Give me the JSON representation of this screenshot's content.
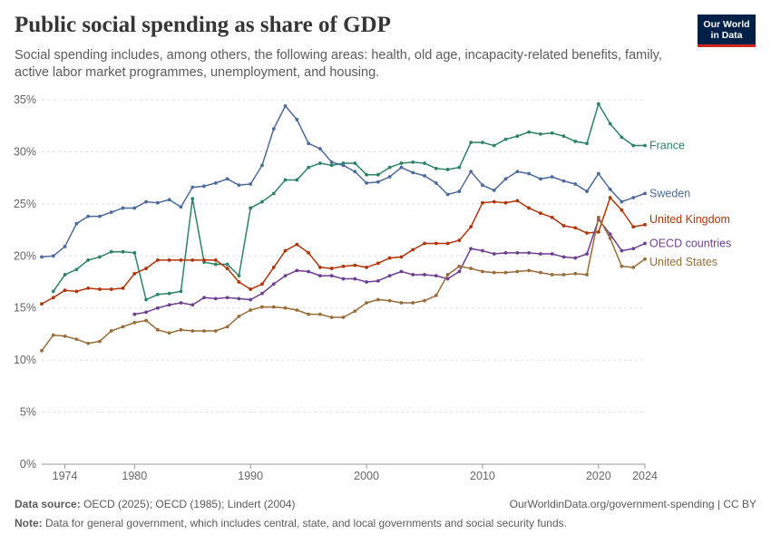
{
  "header": {
    "title": "Public social spending as share of GDP",
    "subtitle": "Social spending includes, among others, the following areas: health, old age, incapacity-related benefits, family, active labor market programmes, unemployment, and housing.",
    "logo_line1": "Our World",
    "logo_line2": "in Data"
  },
  "footer": {
    "source_label": "Data source:",
    "source_text": "OECD (2025); OECD (1985); Lindert (2004)",
    "link_text": "OurWorldinData.org/government-spending | CC BY",
    "note_label": "Note:",
    "note_text": "Data for general government, which includes central, state, and local governments and social security funds."
  },
  "colors": {
    "France": "#2c8465",
    "Sweden": "#4c6a9c",
    "United Kingdom": "#b13507",
    "OECD countries": "#6d3e91",
    "United States": "#996d39",
    "grid": "#dddddd",
    "axis_text": "#666666"
  },
  "chart_data": {
    "type": "line",
    "ylim": [
      0,
      35
    ],
    "xlim": [
      1972,
      2024
    ],
    "y_ticks": [
      "0%",
      "5%",
      "10%",
      "15%",
      "20%",
      "25%",
      "30%",
      "35%"
    ],
    "x_ticks": [
      "1974",
      "1980",
      "1990",
      "2000",
      "2010",
      "2020",
      "2024"
    ],
    "grid": "horizontal dashed",
    "legend": "line-end labels",
    "series": [
      {
        "name": "France",
        "points": [
          [
            1973,
            16.6
          ],
          [
            1974,
            18.2
          ],
          [
            1975,
            18.7
          ],
          [
            1976,
            19.6
          ],
          [
            1977,
            19.9
          ],
          [
            1978,
            20.4
          ],
          [
            1979,
            20.4
          ],
          [
            1980,
            20.3
          ],
          [
            1981,
            15.8
          ],
          [
            1982,
            16.3
          ],
          [
            1983,
            16.4
          ],
          [
            1984,
            16.6
          ],
          [
            1985,
            25.5
          ],
          [
            1986,
            19.4
          ],
          [
            1987,
            19.2
          ],
          [
            1988,
            19.2
          ],
          [
            1989,
            18.1
          ],
          [
            1990,
            24.6
          ],
          [
            1991,
            25.2
          ],
          [
            1992,
            26.0
          ],
          [
            1993,
            27.3
          ],
          [
            1994,
            27.3
          ],
          [
            1995,
            28.5
          ],
          [
            1996,
            28.9
          ],
          [
            1997,
            28.7
          ],
          [
            1998,
            28.9
          ],
          [
            1999,
            28.9
          ],
          [
            2000,
            27.8
          ],
          [
            2001,
            27.8
          ],
          [
            2002,
            28.5
          ],
          [
            2003,
            28.9
          ],
          [
            2004,
            29.0
          ],
          [
            2005,
            28.9
          ],
          [
            2006,
            28.4
          ],
          [
            2007,
            28.3
          ],
          [
            2008,
            28.5
          ],
          [
            2009,
            30.9
          ],
          [
            2010,
            30.9
          ],
          [
            2011,
            30.6
          ],
          [
            2012,
            31.2
          ],
          [
            2013,
            31.5
          ],
          [
            2014,
            31.9
          ],
          [
            2015,
            31.7
          ],
          [
            2016,
            31.8
          ],
          [
            2017,
            31.5
          ],
          [
            2018,
            31.0
          ],
          [
            2019,
            30.8
          ],
          [
            2020,
            34.6
          ],
          [
            2021,
            32.7
          ],
          [
            2022,
            31.4
          ],
          [
            2023,
            30.6
          ],
          [
            2024,
            30.6
          ]
        ]
      },
      {
        "name": "Sweden",
        "points": [
          [
            1972,
            19.9
          ],
          [
            1973,
            20.0
          ],
          [
            1974,
            20.9
          ],
          [
            1975,
            23.1
          ],
          [
            1976,
            23.8
          ],
          [
            1977,
            23.8
          ],
          [
            1978,
            24.2
          ],
          [
            1979,
            24.6
          ],
          [
            1980,
            24.6
          ],
          [
            1981,
            25.2
          ],
          [
            1982,
            25.1
          ],
          [
            1983,
            25.4
          ],
          [
            1984,
            24.7
          ],
          [
            1985,
            26.6
          ],
          [
            1986,
            26.7
          ],
          [
            1987,
            27.0
          ],
          [
            1988,
            27.4
          ],
          [
            1989,
            26.8
          ],
          [
            1990,
            26.9
          ],
          [
            1991,
            28.7
          ],
          [
            1992,
            32.2
          ],
          [
            1993,
            34.4
          ],
          [
            1994,
            33.1
          ],
          [
            1995,
            30.8
          ],
          [
            1996,
            30.3
          ],
          [
            1997,
            29.0
          ],
          [
            1998,
            28.7
          ],
          [
            1999,
            28.1
          ],
          [
            2000,
            27.0
          ],
          [
            2001,
            27.1
          ],
          [
            2002,
            27.6
          ],
          [
            2003,
            28.5
          ],
          [
            2004,
            28.0
          ],
          [
            2005,
            27.7
          ],
          [
            2006,
            27.0
          ],
          [
            2007,
            25.9
          ],
          [
            2008,
            26.2
          ],
          [
            2009,
            28.1
          ],
          [
            2010,
            26.8
          ],
          [
            2011,
            26.3
          ],
          [
            2012,
            27.4
          ],
          [
            2013,
            28.1
          ],
          [
            2014,
            27.9
          ],
          [
            2015,
            27.4
          ],
          [
            2016,
            27.6
          ],
          [
            2017,
            27.2
          ],
          [
            2018,
            26.9
          ],
          [
            2019,
            26.2
          ],
          [
            2020,
            27.9
          ],
          [
            2021,
            26.4
          ],
          [
            2022,
            25.2
          ],
          [
            2023,
            25.6
          ],
          [
            2024,
            26.0
          ]
        ]
      },
      {
        "name": "United Kingdom",
        "points": [
          [
            1972,
            15.4
          ],
          [
            1973,
            16.0
          ],
          [
            1974,
            16.7
          ],
          [
            1975,
            16.6
          ],
          [
            1976,
            16.9
          ],
          [
            1977,
            16.8
          ],
          [
            1978,
            16.8
          ],
          [
            1979,
            16.9
          ],
          [
            1980,
            18.3
          ],
          [
            1981,
            18.8
          ],
          [
            1982,
            19.6
          ],
          [
            1983,
            19.6
          ],
          [
            1984,
            19.6
          ],
          [
            1985,
            19.6
          ],
          [
            1986,
            19.6
          ],
          [
            1987,
            19.6
          ],
          [
            1988,
            18.8
          ],
          [
            1989,
            17.5
          ],
          [
            1990,
            16.8
          ],
          [
            1991,
            17.3
          ],
          [
            1992,
            18.9
          ],
          [
            1993,
            20.5
          ],
          [
            1994,
            21.1
          ],
          [
            1995,
            20.3
          ],
          [
            1996,
            18.9
          ],
          [
            1997,
            18.8
          ],
          [
            1998,
            19.0
          ],
          [
            1999,
            19.1
          ],
          [
            2000,
            18.9
          ],
          [
            2001,
            19.3
          ],
          [
            2002,
            19.8
          ],
          [
            2003,
            19.9
          ],
          [
            2004,
            20.6
          ],
          [
            2005,
            21.2
          ],
          [
            2006,
            21.2
          ],
          [
            2007,
            21.2
          ],
          [
            2008,
            21.5
          ],
          [
            2009,
            22.8
          ],
          [
            2010,
            25.1
          ],
          [
            2011,
            25.2
          ],
          [
            2012,
            25.1
          ],
          [
            2013,
            25.3
          ],
          [
            2014,
            24.6
          ],
          [
            2015,
            24.1
          ],
          [
            2016,
            23.7
          ],
          [
            2017,
            22.9
          ],
          [
            2018,
            22.7
          ],
          [
            2019,
            22.2
          ],
          [
            2020,
            22.3
          ],
          [
            2021,
            25.6
          ],
          [
            2022,
            24.4
          ],
          [
            2023,
            22.8
          ],
          [
            2024,
            23.0
          ]
        ]
      },
      {
        "name": "OECD countries",
        "points": [
          [
            1980,
            14.4
          ],
          [
            1981,
            14.6
          ],
          [
            1982,
            15.0
          ],
          [
            1983,
            15.3
          ],
          [
            1984,
            15.5
          ],
          [
            1985,
            15.3
          ],
          [
            1986,
            16.0
          ],
          [
            1987,
            15.9
          ],
          [
            1988,
            16.0
          ],
          [
            1989,
            15.9
          ],
          [
            1990,
            15.8
          ],
          [
            1991,
            16.4
          ],
          [
            1992,
            17.3
          ],
          [
            1993,
            18.1
          ],
          [
            1994,
            18.6
          ],
          [
            1995,
            18.5
          ],
          [
            1996,
            18.1
          ],
          [
            1997,
            18.1
          ],
          [
            1998,
            17.8
          ],
          [
            1999,
            17.8
          ],
          [
            2000,
            17.5
          ],
          [
            2001,
            17.6
          ],
          [
            2002,
            18.1
          ],
          [
            2003,
            18.5
          ],
          [
            2004,
            18.2
          ],
          [
            2005,
            18.2
          ],
          [
            2006,
            18.1
          ],
          [
            2007,
            17.8
          ],
          [
            2008,
            18.5
          ],
          [
            2009,
            20.7
          ],
          [
            2010,
            20.5
          ],
          [
            2011,
            20.2
          ],
          [
            2012,
            20.3
          ],
          [
            2013,
            20.3
          ],
          [
            2014,
            20.3
          ],
          [
            2015,
            20.2
          ],
          [
            2016,
            20.2
          ],
          [
            2017,
            19.9
          ],
          [
            2018,
            19.8
          ],
          [
            2019,
            20.2
          ],
          [
            2020,
            23.5
          ],
          [
            2021,
            22.1
          ],
          [
            2022,
            20.5
          ],
          [
            2023,
            20.7
          ],
          [
            2024,
            21.2
          ]
        ]
      },
      {
        "name": "United States",
        "points": [
          [
            1972,
            10.9
          ],
          [
            1973,
            12.4
          ],
          [
            1974,
            12.3
          ],
          [
            1975,
            12.0
          ],
          [
            1976,
            11.6
          ],
          [
            1977,
            11.8
          ],
          [
            1978,
            12.8
          ],
          [
            1979,
            13.2
          ],
          [
            1980,
            13.6
          ],
          [
            1981,
            13.8
          ],
          [
            1982,
            12.9
          ],
          [
            1983,
            12.6
          ],
          [
            1984,
            12.9
          ],
          [
            1985,
            12.8
          ],
          [
            1986,
            12.8
          ],
          [
            1987,
            12.8
          ],
          [
            1988,
            13.2
          ],
          [
            1989,
            14.2
          ],
          [
            1990,
            14.8
          ],
          [
            1991,
            15.1
          ],
          [
            1992,
            15.1
          ],
          [
            1993,
            15.0
          ],
          [
            1994,
            14.8
          ],
          [
            1995,
            14.4
          ],
          [
            1996,
            14.4
          ],
          [
            1997,
            14.1
          ],
          [
            1998,
            14.1
          ],
          [
            1999,
            14.7
          ],
          [
            2000,
            15.5
          ],
          [
            2001,
            15.8
          ],
          [
            2002,
            15.7
          ],
          [
            2003,
            15.5
          ],
          [
            2004,
            15.5
          ],
          [
            2005,
            15.7
          ],
          [
            2006,
            16.2
          ],
          [
            2007,
            18.2
          ],
          [
            2008,
            19.0
          ],
          [
            2009,
            18.8
          ],
          [
            2010,
            18.5
          ],
          [
            2011,
            18.4
          ],
          [
            2012,
            18.4
          ],
          [
            2013,
            18.5
          ],
          [
            2014,
            18.6
          ],
          [
            2015,
            18.4
          ],
          [
            2016,
            18.2
          ],
          [
            2017,
            18.2
          ],
          [
            2018,
            18.3
          ],
          [
            2019,
            18.2
          ],
          [
            2020,
            23.7
          ],
          [
            2021,
            21.7
          ],
          [
            2022,
            19.0
          ],
          [
            2023,
            18.9
          ],
          [
            2024,
            19.7
          ]
        ]
      }
    ]
  }
}
